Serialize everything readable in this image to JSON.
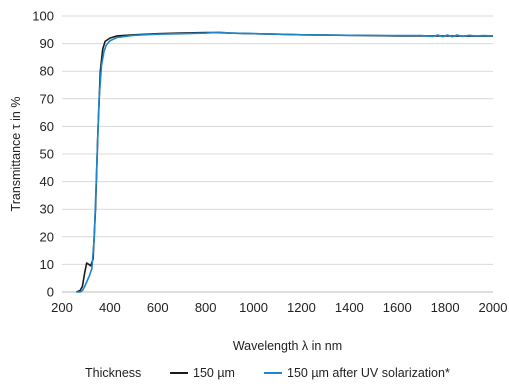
{
  "chart_data": {
    "type": "line",
    "title": "",
    "xlabel": "Wavelength λ in nm",
    "ylabel": "Transmittance τ in %",
    "xlim": [
      200,
      2000
    ],
    "ylim": [
      0,
      100
    ],
    "x_ticks": [
      200,
      400,
      600,
      800,
      1000,
      1200,
      1400,
      1600,
      1800,
      2000
    ],
    "y_ticks": [
      0,
      10,
      20,
      30,
      40,
      50,
      60,
      70,
      80,
      90,
      100
    ],
    "grid": "horizontal",
    "legend": {
      "position": "bottom",
      "title": "Thickness"
    },
    "series": [
      {
        "name": "150 µm",
        "color": "#1a1a1a",
        "points": [
          [
            260,
            0
          ],
          [
            275,
            0.5
          ],
          [
            285,
            2
          ],
          [
            295,
            7
          ],
          [
            303,
            10.5
          ],
          [
            312,
            10
          ],
          [
            320,
            9.5
          ],
          [
            330,
            12
          ],
          [
            340,
            30
          ],
          [
            350,
            58
          ],
          [
            360,
            80
          ],
          [
            370,
            88
          ],
          [
            380,
            90.8
          ],
          [
            400,
            92
          ],
          [
            430,
            92.8
          ],
          [
            500,
            93.2
          ],
          [
            600,
            93.6
          ],
          [
            700,
            93.8
          ],
          [
            800,
            94
          ],
          [
            850,
            94
          ],
          [
            900,
            93.8
          ],
          [
            1000,
            93.6
          ],
          [
            1100,
            93.4
          ],
          [
            1200,
            93.2
          ],
          [
            1400,
            93
          ],
          [
            1600,
            92.8
          ],
          [
            1700,
            92.8
          ],
          [
            1800,
            92.8
          ],
          [
            1900,
            92.7
          ],
          [
            2000,
            92.7
          ]
        ]
      },
      {
        "name": "150 µm after UV solarization*",
        "color": "#1f86c8",
        "points": [
          [
            260,
            0
          ],
          [
            275,
            0
          ],
          [
            285,
            0.5
          ],
          [
            295,
            2
          ],
          [
            305,
            4
          ],
          [
            315,
            6
          ],
          [
            325,
            8.5
          ],
          [
            335,
            20
          ],
          [
            345,
            45
          ],
          [
            355,
            70
          ],
          [
            365,
            82
          ],
          [
            375,
            87
          ],
          [
            385,
            89.5
          ],
          [
            400,
            91
          ],
          [
            430,
            92.2
          ],
          [
            500,
            93
          ],
          [
            600,
            93.4
          ],
          [
            700,
            93.6
          ],
          [
            800,
            93.8
          ],
          [
            860,
            94.1
          ],
          [
            900,
            93.8
          ],
          [
            1000,
            93.6
          ],
          [
            1100,
            93.4
          ],
          [
            1200,
            93.2
          ],
          [
            1400,
            93
          ],
          [
            1600,
            92.9
          ],
          [
            1700,
            92.9
          ],
          [
            1750,
            92.6
          ],
          [
            1770,
            93.1
          ],
          [
            1790,
            92.5
          ],
          [
            1810,
            93.1
          ],
          [
            1830,
            92.5
          ],
          [
            1850,
            93.1
          ],
          [
            1870,
            92.6
          ],
          [
            1900,
            93
          ],
          [
            1930,
            92.7
          ],
          [
            1960,
            92.9
          ],
          [
            2000,
            92.8
          ]
        ]
      }
    ]
  }
}
